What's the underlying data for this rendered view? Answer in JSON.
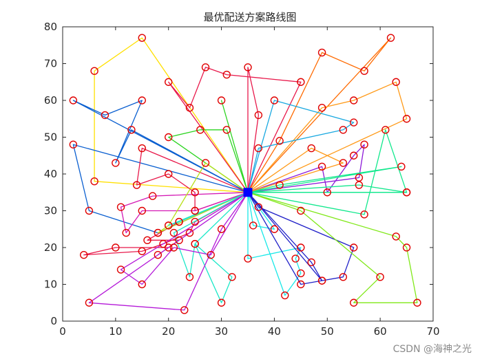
{
  "watermark": "CSDN @海神之光",
  "chart_data": {
    "type": "line",
    "title": "最优配送方案路线图",
    "xlabel": "",
    "ylabel": "",
    "xlim": [
      0,
      70
    ],
    "ylim": [
      0,
      80
    ],
    "xticks": [
      0,
      10,
      20,
      30,
      40,
      50,
      60,
      70
    ],
    "yticks": [
      0,
      10,
      20,
      30,
      40,
      50,
      60,
      70,
      80
    ],
    "grid": false,
    "legend": "none",
    "depot": {
      "x": 35,
      "y": 35,
      "color": "#0000ff"
    },
    "customer_marker_color": "#e00000",
    "routes": [
      {
        "color": "#ffe000",
        "points": [
          [
            15,
            77
          ],
          [
            6,
            68
          ],
          [
            6,
            38
          ]
        ]
      },
      {
        "color": "#0a5fd0",
        "points": [
          [
            2,
            60
          ],
          [
            8,
            56
          ],
          [
            15,
            60
          ],
          [
            10,
            43
          ],
          [
            13,
            52
          ]
        ]
      },
      {
        "color": "#0a5fd0",
        "points": [
          [
            2,
            48
          ],
          [
            5,
            30
          ],
          [
            18,
            24
          ]
        ]
      },
      {
        "color": "#e8184a",
        "points": [
          [
            20,
            65
          ],
          [
            24,
            58
          ],
          [
            27,
            69
          ],
          [
            31,
            67
          ],
          [
            45,
            65
          ]
        ]
      },
      {
        "color": "#e8184a",
        "points": [
          [
            35,
            69
          ],
          [
            37,
            56
          ]
        ]
      },
      {
        "color": "#2ad41e",
        "points": [
          [
            20,
            50
          ],
          [
            26,
            52
          ],
          [
            31,
            52
          ]
        ]
      },
      {
        "color": "#2ad41e",
        "points": [
          [
            30,
            60
          ],
          [
            35,
            35
          ]
        ]
      },
      {
        "color": "#ff6a00",
        "points": [
          [
            62,
            77
          ],
          [
            57,
            68
          ],
          [
            49,
            73
          ],
          [
            41,
            49
          ]
        ]
      },
      {
        "color": "#ff9a18",
        "points": [
          [
            49,
            58
          ],
          [
            55,
            60
          ],
          [
            63,
            65
          ],
          [
            65,
            55
          ]
        ]
      },
      {
        "color": "#18a8e0",
        "points": [
          [
            40,
            60
          ],
          [
            55,
            54
          ],
          [
            53,
            52
          ],
          [
            37,
            47
          ]
        ]
      },
      {
        "color": "#8c18d8",
        "points": [
          [
            49,
            42
          ],
          [
            50,
            35
          ],
          [
            55,
            45
          ],
          [
            57,
            48
          ],
          [
            56,
            39
          ]
        ]
      },
      {
        "color": "#10e88c",
        "points": [
          [
            41,
            37
          ],
          [
            64,
            42
          ]
        ]
      },
      {
        "color": "#10e88c",
        "points": [
          [
            56,
            37
          ],
          [
            65,
            35
          ]
        ]
      },
      {
        "color": "#10e88c",
        "points": [
          [
            57,
            29
          ],
          [
            61,
            52
          ],
          [
            65,
            35
          ]
        ]
      },
      {
        "color": "#ff9a18",
        "points": [
          [
            53,
            43
          ],
          [
            47,
            47
          ]
        ]
      },
      {
        "color": "#e8184a",
        "points": [
          [
            15,
            47
          ],
          [
            14,
            37
          ],
          [
            20,
            40
          ],
          [
            25,
            35
          ],
          [
            25,
            30
          ]
        ]
      },
      {
        "color": "#d418b4",
        "points": [
          [
            17,
            34
          ],
          [
            11,
            31
          ],
          [
            12,
            24
          ],
          [
            15,
            30
          ],
          [
            25,
            30
          ]
        ]
      },
      {
        "color": "#e8184a",
        "points": [
          [
            22,
            27
          ],
          [
            16,
            22
          ],
          [
            22,
            22
          ],
          [
            18,
            18
          ],
          [
            20,
            20
          ],
          [
            10,
            20
          ],
          [
            4,
            18
          ],
          [
            15,
            19
          ],
          [
            19,
            21
          ],
          [
            24,
            24
          ],
          [
            25,
            27
          ]
        ]
      },
      {
        "color": "#b8e018",
        "points": [
          [
            18,
            24
          ],
          [
            20,
            26
          ],
          [
            27,
            43
          ]
        ]
      },
      {
        "color": "#1ae8c8",
        "points": [
          [
            20,
            26
          ],
          [
            22,
            27
          ],
          [
            35,
            35
          ]
        ]
      },
      {
        "color": "#1ae8c8",
        "points": [
          [
            21,
            24
          ],
          [
            24,
            12
          ],
          [
            25,
            21
          ],
          [
            30,
            5
          ],
          [
            32,
            12
          ],
          [
            25,
            21
          ]
        ]
      },
      {
        "color": "#b418d8",
        "points": [
          [
            5,
            5
          ],
          [
            23,
            3
          ],
          [
            30,
            25
          ],
          [
            35,
            35
          ]
        ]
      },
      {
        "color": "#b418d8",
        "points": [
          [
            11,
            14
          ],
          [
            15,
            10
          ],
          [
            21,
            20
          ],
          [
            28,
            18
          ]
        ]
      },
      {
        "color": "#18e8e8",
        "points": [
          [
            35,
            17
          ],
          [
            45,
            20
          ],
          [
            44,
            17
          ],
          [
            45,
            13
          ],
          [
            42,
            7
          ]
        ]
      },
      {
        "color": "#18e8e8",
        "points": [
          [
            36,
            26
          ],
          [
            40,
            25
          ]
        ]
      },
      {
        "color": "#2020c8",
        "points": [
          [
            45,
            10
          ],
          [
            49,
            11
          ],
          [
            53,
            12
          ],
          [
            55,
            20
          ],
          [
            37,
            31
          ]
        ]
      },
      {
        "color": "#2020c8",
        "points": [
          [
            47,
            16
          ],
          [
            49,
            11
          ]
        ]
      },
      {
        "color": "#80e818",
        "points": [
          [
            45,
            30
          ],
          [
            60,
            12
          ],
          [
            55,
            5
          ],
          [
            67,
            5
          ],
          [
            65,
            20
          ],
          [
            63,
            23
          ]
        ]
      }
    ]
  }
}
